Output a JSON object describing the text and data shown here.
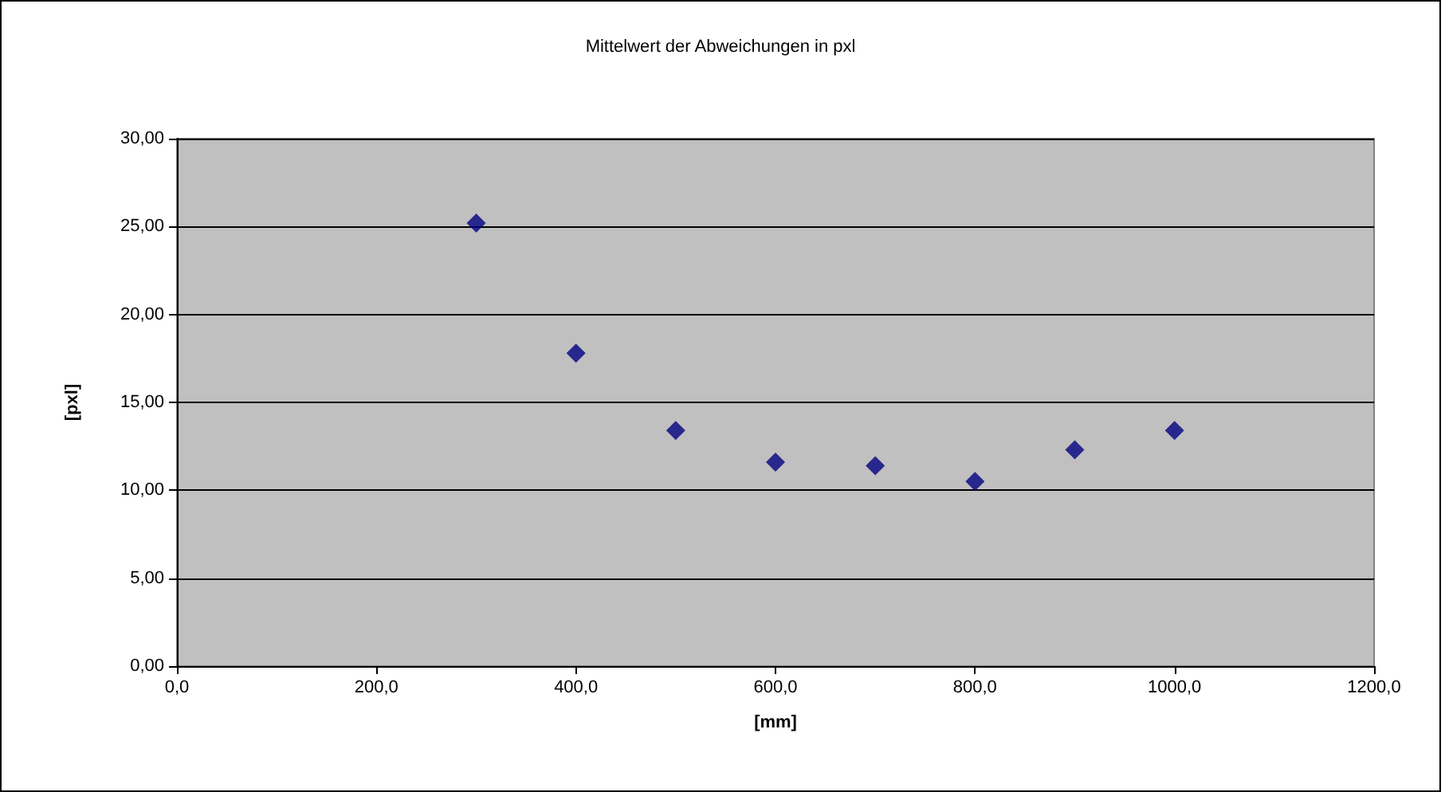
{
  "chart_data": {
    "type": "scatter",
    "title": "Mittelwert der Abweichungen in pxl",
    "xlabel": "[mm]",
    "ylabel": "[pxl]",
    "x": [
      300,
      400,
      500,
      600,
      700,
      800,
      900,
      1000
    ],
    "series": [
      {
        "color": "#000080",
        "values": [
          25.2,
          17.8,
          13.4,
          11.6,
          11.4,
          10.5,
          12.3,
          13.4
        ]
      }
    ],
    "xlim": [
      0,
      1200
    ],
    "xticks": [
      {
        "value": 0,
        "label": "0,0"
      },
      {
        "value": 200,
        "label": "200,0"
      },
      {
        "value": 400,
        "label": "400,0"
      },
      {
        "value": 600,
        "label": "600,0"
      },
      {
        "value": 800,
        "label": "800,0"
      },
      {
        "value": 1000,
        "label": "1000,0"
      },
      {
        "value": 1200,
        "label": "1200,0"
      }
    ],
    "ylim": [
      0,
      30
    ],
    "yticks": [
      {
        "value": 0,
        "label": "0,00"
      },
      {
        "value": 5,
        "label": "5,00"
      },
      {
        "value": 10,
        "label": "10,00"
      },
      {
        "value": 15,
        "label": "15,00"
      },
      {
        "value": 20,
        "label": "20,00"
      },
      {
        "value": 25,
        "label": "25,00"
      },
      {
        "value": 30,
        "label": "30,00"
      }
    ],
    "grid": "y",
    "marker": "diamond"
  }
}
